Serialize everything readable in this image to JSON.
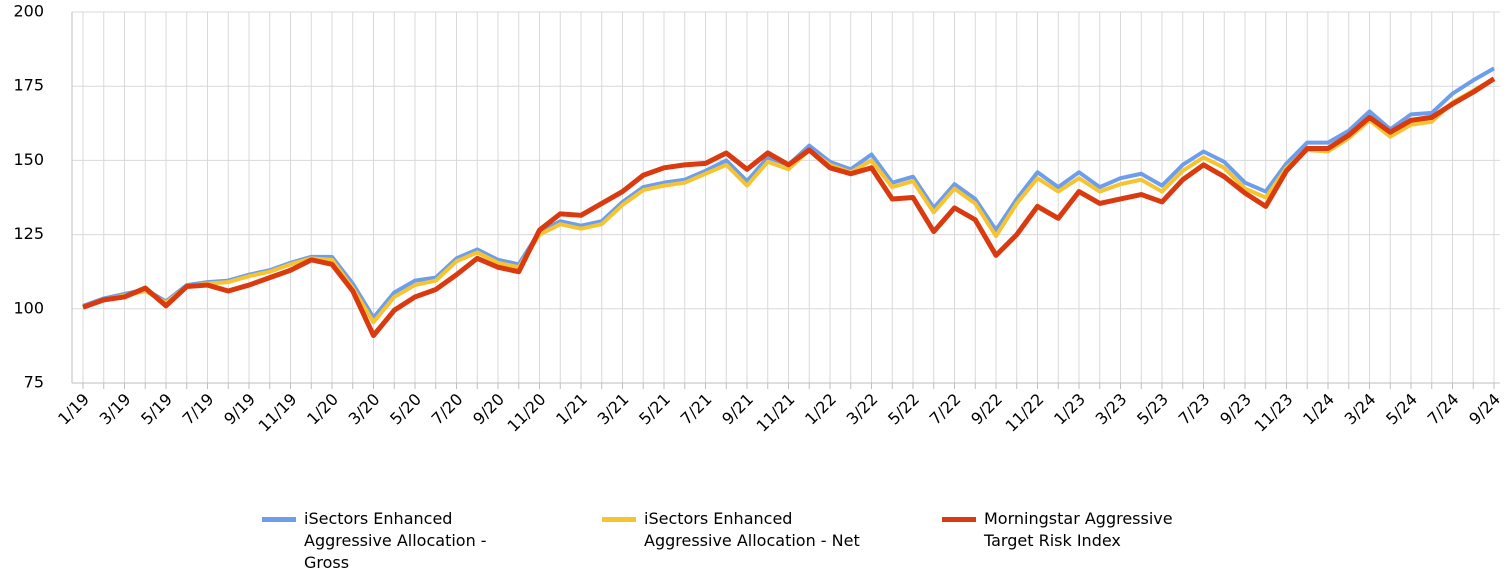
{
  "chart_data": {
    "type": "line",
    "categories": [
      "1/19",
      null,
      "3/19",
      null,
      "5/19",
      null,
      "7/19",
      null,
      "9/19",
      null,
      "11/19",
      null,
      "1/20",
      null,
      "3/20",
      null,
      "5/20",
      null,
      "7/20",
      null,
      "9/20",
      null,
      "11/20",
      null,
      "1/21",
      null,
      "3/21",
      null,
      "5/21",
      null,
      "7/21",
      null,
      "9/21",
      null,
      "11/21",
      null,
      "1/22",
      null,
      "3/22",
      null,
      "5/22",
      null,
      "7/22",
      null,
      "9/22",
      null,
      "11/22",
      null,
      "1/23",
      null,
      "3/23",
      null,
      "5/23",
      null,
      "7/23",
      null,
      "9/23",
      null,
      "11/23",
      null,
      "1/24",
      null,
      "3/24",
      null,
      "5/24",
      null,
      "7/24",
      null,
      "9/24"
    ],
    "series": [
      {
        "name": "iSectors Enhanced Aggressive Allocation - Gross",
        "color": "#6d9eeb",
        "values": [
          101,
          103.5,
          105,
          106.5,
          102.5,
          108,
          109,
          109.5,
          111.5,
          113,
          115.5,
          117.5,
          117.5,
          108.5,
          97,
          105.5,
          109.5,
          110.5,
          117,
          120,
          116.5,
          115,
          126,
          129.5,
          128,
          129.5,
          136,
          141,
          142.5,
          143.5,
          146.5,
          150,
          143,
          151,
          148.5,
          155,
          149.5,
          147,
          152,
          142.5,
          144.5,
          134,
          142,
          137,
          126.5,
          137,
          146,
          141,
          146,
          141,
          144,
          145.5,
          141.5,
          148.5,
          153,
          149.5,
          142.5,
          139.5,
          149,
          156,
          156,
          160,
          166.5,
          160.5,
          165.5,
          166,
          172.5,
          177,
          181
        ]
      },
      {
        "name": "iSectors Enhanced Aggressive Allocation - Net",
        "color": "#f6c431",
        "values": [
          100.5,
          103,
          104.5,
          106,
          102,
          107.5,
          108.5,
          109,
          111,
          112.5,
          115,
          117,
          116.5,
          107,
          95.5,
          104,
          108,
          109.5,
          116,
          119,
          115.5,
          114,
          125,
          128.5,
          127,
          128.5,
          135,
          140,
          141.5,
          142.5,
          145.5,
          148.5,
          141.5,
          149.5,
          147,
          153.5,
          148.5,
          146,
          150,
          141,
          143,
          132.5,
          140.5,
          135.5,
          124.5,
          135.5,
          144,
          139.5,
          144,
          139.5,
          142,
          143.5,
          139.5,
          146.5,
          151,
          147.5,
          140.5,
          137.5,
          147.5,
          153.5,
          153,
          157.5,
          163.5,
          158,
          162,
          163,
          169.5,
          173.5,
          177.5
        ]
      },
      {
        "name": "Morningstar Aggressive Target Risk Index",
        "color": "#d93a0f",
        "values": [
          100.5,
          103,
          104,
          107,
          101,
          107.5,
          108,
          106,
          108,
          110.5,
          113,
          116.5,
          115,
          106,
          91,
          99.5,
          104,
          106.5,
          111.5,
          117,
          114,
          112.5,
          126.5,
          132,
          131.5,
          135.5,
          139.5,
          145,
          147.5,
          148.5,
          149,
          152.5,
          147,
          152.5,
          148.5,
          153.5,
          147.5,
          145.5,
          147.5,
          137,
          137.5,
          126,
          134,
          130,
          118,
          125,
          134.5,
          130.5,
          139.5,
          135.5,
          137,
          138.5,
          136,
          143.5,
          148.5,
          144.5,
          139,
          134.5,
          146.5,
          154,
          154,
          158.5,
          164.5,
          159.5,
          163.5,
          164.5,
          169,
          173,
          177.5
        ]
      }
    ],
    "ylim": [
      75,
      200
    ],
    "yticks": [
      75,
      100,
      125,
      150,
      175,
      200
    ],
    "grid": true,
    "legend": "bottom"
  }
}
